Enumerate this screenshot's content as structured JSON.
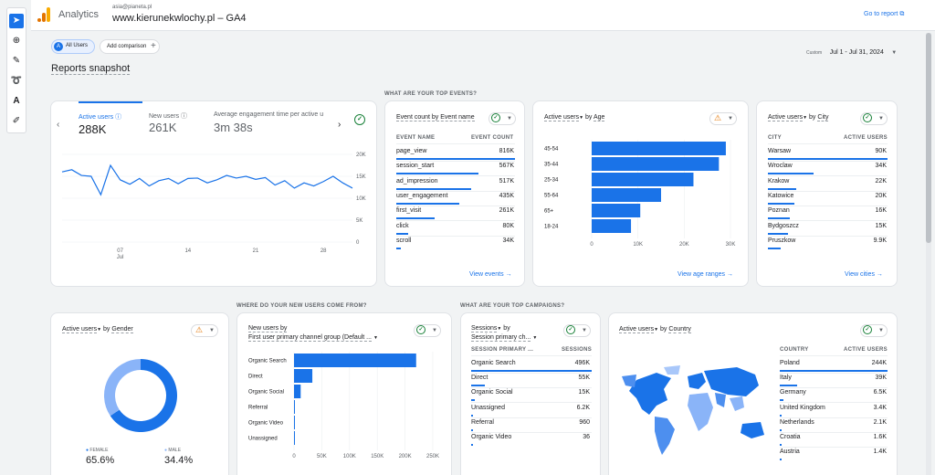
{
  "header": {
    "app": "Analytics",
    "account": "asia@pianeta.pl",
    "property": "www.kierunekwlochy.pl – GA4",
    "goto": "Go to report"
  },
  "filters": {
    "segment": "All Users",
    "segment_letter": "A",
    "add": "Add comparison",
    "custom": "Custom",
    "date": "Jul 1 - Jul 31, 2024"
  },
  "page": {
    "title": "Reports snapshot"
  },
  "sections": {
    "events": "WHAT ARE YOUR TOP EVENTS?",
    "new_users": "WHERE DO YOUR NEW USERS COME FROM?",
    "campaigns": "WHAT ARE YOUR TOP CAMPAIGNS?"
  },
  "overview": {
    "metrics": [
      {
        "label": "Active users",
        "value": "288K"
      },
      {
        "label": "New users",
        "value": "261K"
      },
      {
        "label": "Average engagement time per active u",
        "value": "3m 38s"
      }
    ],
    "yaxis": [
      "20K",
      "15K",
      "10K",
      "5K",
      "0"
    ],
    "xaxis": [
      {
        "day": "07",
        "month": "Jul"
      },
      {
        "day": "14"
      },
      {
        "day": "21"
      },
      {
        "day": "28"
      }
    ],
    "series": [
      16,
      16.5,
      15.2,
      15,
      10.8,
      17.5,
      14.2,
      13.2,
      14.5,
      12.8,
      14,
      14.5,
      13.3,
      14.5,
      14.6,
      13.5,
      14.2,
      15.2,
      14.6,
      15,
      14.3,
      14.7,
      13,
      14,
      12.3,
      13.5,
      12.8,
      13.8,
      15,
      13.5,
      12.3
    ]
  },
  "events": {
    "title": "Event count by Event name",
    "col1": "EVENT NAME",
    "col2": "EVENT COUNT",
    "link": "View events",
    "rows": [
      {
        "name": "page_view",
        "value": "816K",
        "share": 1
      },
      {
        "name": "session_start",
        "value": "567K",
        "share": 0.69
      },
      {
        "name": "ad_impression",
        "value": "517K",
        "share": 0.63
      },
      {
        "name": "user_engagement",
        "value": "435K",
        "share": 0.53
      },
      {
        "name": "first_visit",
        "value": "261K",
        "share": 0.32
      },
      {
        "name": "click",
        "value": "80K",
        "share": 0.1
      },
      {
        "name": "scroll",
        "value": "34K",
        "share": 0.04
      }
    ]
  },
  "age": {
    "metric": "Active users",
    "by": "by",
    "dim": "Age",
    "link": "View age ranges",
    "chart_data": {
      "type": "bar",
      "categories": [
        "45-54",
        "35-44",
        "25-34",
        "55-64",
        "65+",
        "18-24"
      ],
      "values": [
        29000,
        27500,
        22000,
        15000,
        10500,
        8500
      ],
      "xlim": [
        0,
        30000
      ],
      "xticks": [
        "0",
        "10K",
        "20K",
        "30K"
      ]
    }
  },
  "city": {
    "metric": "Active users",
    "by": "by",
    "dim": "City",
    "col1": "CITY",
    "col2": "ACTIVE USERS",
    "link": "View cities",
    "rows": [
      {
        "name": "Warsaw",
        "value": "90K",
        "share": 1
      },
      {
        "name": "Wroclaw",
        "value": "34K",
        "share": 0.38
      },
      {
        "name": "Krakow",
        "value": "22K",
        "share": 0.24
      },
      {
        "name": "Katowice",
        "value": "20K",
        "share": 0.22
      },
      {
        "name": "Poznan",
        "value": "16K",
        "share": 0.18
      },
      {
        "name": "Bydgoszcz",
        "value": "15K",
        "share": 0.17
      },
      {
        "name": "Pruszkow",
        "value": "9.9K",
        "share": 0.11
      }
    ]
  },
  "gender": {
    "metric": "Active users",
    "by": "by",
    "dim": "Gender",
    "chart_data": {
      "type": "pie",
      "slices": [
        {
          "label": "FEMALE",
          "value": 65.6,
          "display": "65.6%"
        },
        {
          "label": "MALE",
          "value": 34.4,
          "display": "34.4%"
        }
      ]
    }
  },
  "channels": {
    "title1": "New users by",
    "title2": "First user primary channel group (Default ...",
    "chart_data": {
      "type": "bar",
      "categories": [
        "Organic Search",
        "Direct",
        "Organic Social",
        "Referral",
        "Organic Video",
        "Unassigned"
      ],
      "values": [
        220000,
        33000,
        12000,
        1500,
        800,
        300
      ],
      "xlim": [
        0,
        250000
      ],
      "xticks": [
        "0",
        "50K",
        "100K",
        "150K",
        "200K",
        "250K"
      ]
    }
  },
  "campaigns": {
    "title1": "Sessions",
    "title2": "Session primary ch...",
    "col1": "SESSION PRIMARY ...",
    "col2": "SESSIONS",
    "rows": [
      {
        "name": "Organic Search",
        "value": "496K",
        "share": 1
      },
      {
        "name": "Direct",
        "value": "55K",
        "share": 0.11
      },
      {
        "name": "Organic Social",
        "value": "15K",
        "share": 0.03
      },
      {
        "name": "Unassigned",
        "value": "6.2K",
        "share": 0.012
      },
      {
        "name": "Referral",
        "value": "960",
        "share": 0.004
      },
      {
        "name": "Organic Video",
        "value": "36",
        "share": 0.001
      }
    ]
  },
  "country": {
    "metric": "Active users",
    "by": "by",
    "dim": "Country",
    "col1": "COUNTRY",
    "col2": "ACTIVE USERS",
    "rows": [
      {
        "name": "Poland",
        "value": "244K",
        "share": 1
      },
      {
        "name": "Italy",
        "value": "39K",
        "share": 0.16
      },
      {
        "name": "Germany",
        "value": "6.5K",
        "share": 0.03
      },
      {
        "name": "United Kingdom",
        "value": "3.4K",
        "share": 0.014
      },
      {
        "name": "Netherlands",
        "value": "2.1K",
        "share": 0.009
      },
      {
        "name": "Croatia",
        "value": "1.6K",
        "share": 0.007
      },
      {
        "name": "Austria",
        "value": "1.4K",
        "share": 0.006
      }
    ]
  },
  "colors": {
    "accent": "#1a73e8",
    "light": "#8ab4f8",
    "warn": "#e37400",
    "ok": "#188038"
  }
}
